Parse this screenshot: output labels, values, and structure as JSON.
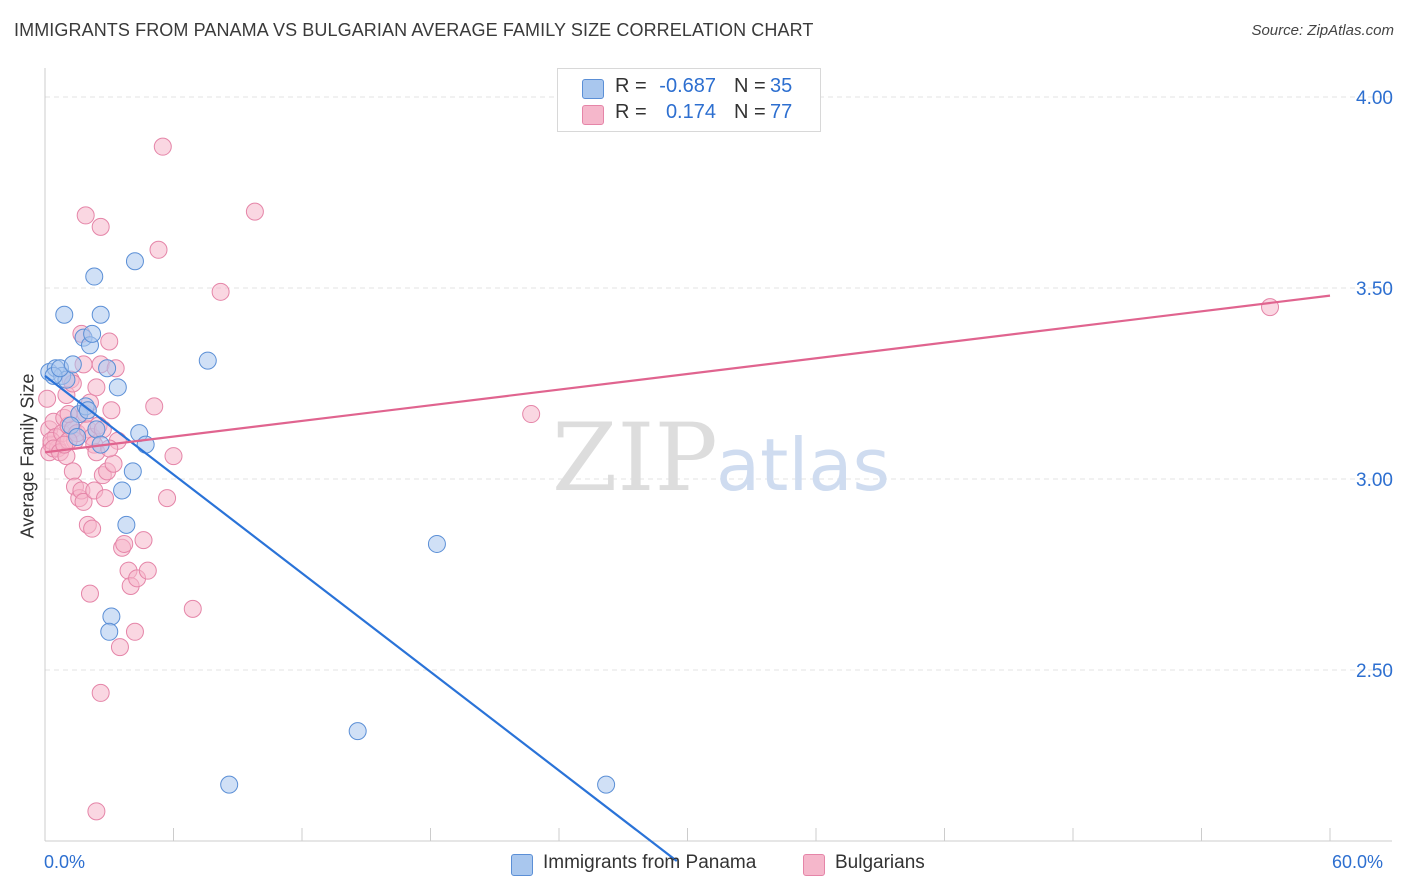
{
  "title": "IMMIGRANTS FROM PANAMA VS BULGARIAN AVERAGE FAMILY SIZE CORRELATION CHART",
  "source": "Source: ZipAtlas.com",
  "watermark": {
    "zip": "ZIP",
    "atlas": "atlas"
  },
  "colors": {
    "blue_fill": "#a9c7ee",
    "blue_stroke": "#5b8fd6",
    "blue_line": "#2a73d8",
    "pink_fill": "#f5b7cb",
    "pink_stroke": "#e585a8",
    "pink_line": "#e0648f",
    "axis_text": "#2d6fd0",
    "grid": "#e3e3e3"
  },
  "legend": {
    "rows": [
      {
        "r_label": "R =",
        "r_value": "-0.687",
        "n_label": "N =",
        "n_value": "35"
      },
      {
        "r_label": "R =",
        "r_value": "0.174",
        "n_label": "N =",
        "n_value": "77"
      }
    ]
  },
  "bottom_legend": {
    "items": [
      {
        "label": "Immigrants from Panama"
      },
      {
        "label": "Bulgarians"
      }
    ]
  },
  "chart_data": {
    "type": "scatter",
    "title": "IMMIGRANTS FROM PANAMA VS BULGARIAN AVERAGE FAMILY SIZE CORRELATION CHART",
    "xlabel": "",
    "ylabel": "Average Family Size",
    "xlim": [
      0,
      60
    ],
    "ylim": [
      2.0,
      4.08
    ],
    "x_tick_labels": [
      "0.0%",
      "60.0%"
    ],
    "y_ticks": [
      2.5,
      3.0,
      3.5,
      4.0
    ],
    "y_tick_labels": [
      "2.50",
      "3.00",
      "3.50",
      "4.00"
    ],
    "grid": true,
    "series": [
      {
        "name": "Immigrants from Panama",
        "trend": {
          "x": [
            0.0,
            29.5
          ],
          "y": [
            3.27,
            2.0
          ]
        },
        "points": [
          [
            0.2,
            3.28
          ],
          [
            0.5,
            3.29
          ],
          [
            0.8,
            3.27
          ],
          [
            1.0,
            3.26
          ],
          [
            0.4,
            3.27
          ],
          [
            0.7,
            3.29
          ],
          [
            0.9,
            3.43
          ],
          [
            1.3,
            3.3
          ],
          [
            1.8,
            3.37
          ],
          [
            2.1,
            3.35
          ],
          [
            2.2,
            3.38
          ],
          [
            2.3,
            3.53
          ],
          [
            2.6,
            3.43
          ],
          [
            1.6,
            3.17
          ],
          [
            1.9,
            3.19
          ],
          [
            2.0,
            3.18
          ],
          [
            1.2,
            3.14
          ],
          [
            1.5,
            3.11
          ],
          [
            2.4,
            3.13
          ],
          [
            2.6,
            3.09
          ],
          [
            2.9,
            3.29
          ],
          [
            3.4,
            3.24
          ],
          [
            3.6,
            2.97
          ],
          [
            3.8,
            2.88
          ],
          [
            3.1,
            2.64
          ],
          [
            3.0,
            2.6
          ],
          [
            4.1,
            3.02
          ],
          [
            4.4,
            3.12
          ],
          [
            4.7,
            3.09
          ],
          [
            4.2,
            3.57
          ],
          [
            7.6,
            3.31
          ],
          [
            8.6,
            2.2
          ],
          [
            14.6,
            2.34
          ],
          [
            18.3,
            2.83
          ],
          [
            26.2,
            2.2
          ]
        ]
      },
      {
        "name": "Bulgarians",
        "trend": {
          "x": [
            0.0,
            60.0
          ],
          "y": [
            3.07,
            3.48
          ]
        },
        "points": [
          [
            0.1,
            3.21
          ],
          [
            0.2,
            3.13
          ],
          [
            0.3,
            3.09
          ],
          [
            0.4,
            3.15
          ],
          [
            0.2,
            3.07
          ],
          [
            0.5,
            3.11
          ],
          [
            0.6,
            3.08
          ],
          [
            0.3,
            3.1
          ],
          [
            0.4,
            3.08
          ],
          [
            0.8,
            3.12
          ],
          [
            0.9,
            3.16
          ],
          [
            0.7,
            3.07
          ],
          [
            1.0,
            3.06
          ],
          [
            1.1,
            3.14
          ],
          [
            1.2,
            3.26
          ],
          [
            1.3,
            3.13
          ],
          [
            1.4,
            3.1
          ],
          [
            1.5,
            3.12
          ],
          [
            1.6,
            3.17
          ],
          [
            1.7,
            3.38
          ],
          [
            1.8,
            3.3
          ],
          [
            1.9,
            3.17
          ],
          [
            2.0,
            3.13
          ],
          [
            2.1,
            3.2
          ],
          [
            2.2,
            3.11
          ],
          [
            2.3,
            3.09
          ],
          [
            2.4,
            3.07
          ],
          [
            2.5,
            3.14
          ],
          [
            2.6,
            3.3
          ],
          [
            2.7,
            3.13
          ],
          [
            1.0,
            3.22
          ],
          [
            1.1,
            3.1
          ],
          [
            1.3,
            3.02
          ],
          [
            1.4,
            2.98
          ],
          [
            1.6,
            2.95
          ],
          [
            1.7,
            2.97
          ],
          [
            1.8,
            2.94
          ],
          [
            1.9,
            3.69
          ],
          [
            2.0,
            2.88
          ],
          [
            2.1,
            2.7
          ],
          [
            2.2,
            2.87
          ],
          [
            2.3,
            2.97
          ],
          [
            2.4,
            3.24
          ],
          [
            2.6,
            3.66
          ],
          [
            2.7,
            3.01
          ],
          [
            2.8,
            2.95
          ],
          [
            2.9,
            3.02
          ],
          [
            3.0,
            3.36
          ],
          [
            3.1,
            3.18
          ],
          [
            3.2,
            3.04
          ],
          [
            3.3,
            3.29
          ],
          [
            3.4,
            3.1
          ],
          [
            3.5,
            2.56
          ],
          [
            3.6,
            2.82
          ],
          [
            3.7,
            2.83
          ],
          [
            3.9,
            2.76
          ],
          [
            4.0,
            2.72
          ],
          [
            4.2,
            2.6
          ],
          [
            4.3,
            2.74
          ],
          [
            4.6,
            2.84
          ],
          [
            4.8,
            2.76
          ],
          [
            5.1,
            3.19
          ],
          [
            5.3,
            3.6
          ],
          [
            5.5,
            3.87
          ],
          [
            5.7,
            2.95
          ],
          [
            6.0,
            3.06
          ],
          [
            6.9,
            2.66
          ],
          [
            8.2,
            3.49
          ],
          [
            9.8,
            3.7
          ],
          [
            2.6,
            2.44
          ],
          [
            2.4,
            2.13
          ],
          [
            1.1,
            3.17
          ],
          [
            0.9,
            3.09
          ],
          [
            1.3,
            3.25
          ],
          [
            3.0,
            3.08
          ],
          [
            22.7,
            3.17
          ],
          [
            57.2,
            3.45
          ]
        ]
      }
    ]
  }
}
